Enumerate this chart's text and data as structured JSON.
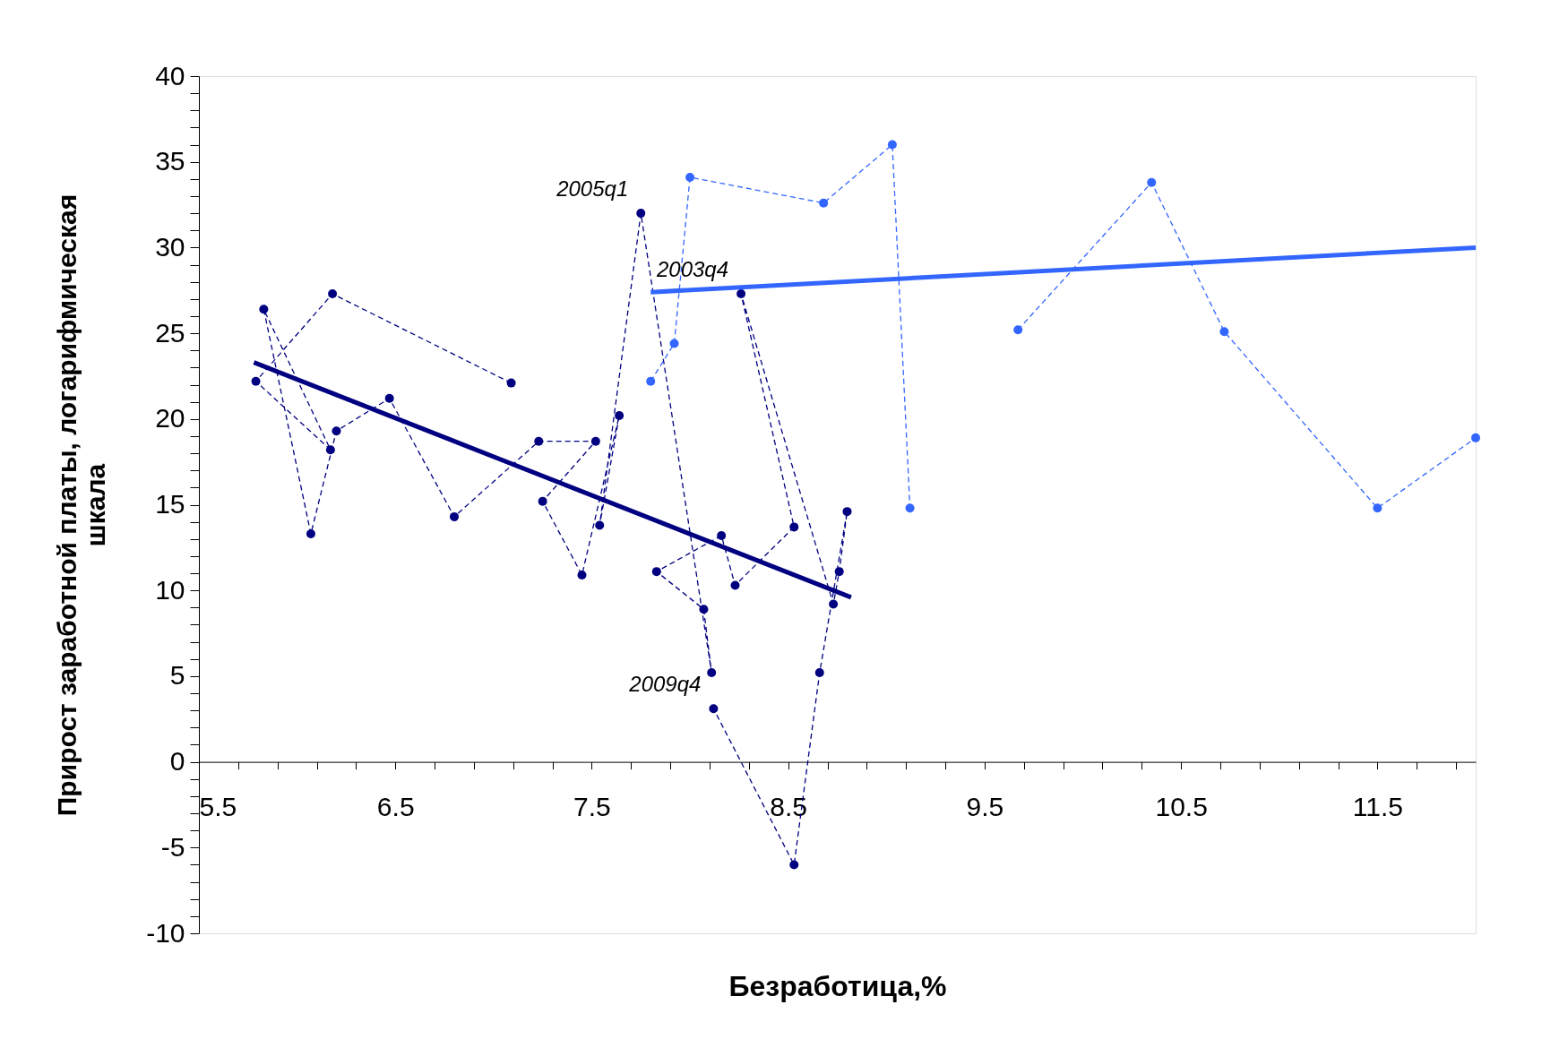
{
  "chart_data": {
    "type": "line",
    "xlabel": "Безработица,%",
    "ylabel": "Прирост заработной платы, логарифмическая\nшкала",
    "xlim": [
      5.5,
      12
    ],
    "ylim": [
      -10,
      40
    ],
    "xticks": [
      5.5,
      {
        "value": 5.7,
        "label": null
      },
      {
        "value": 5.9,
        "label": null
      },
      {
        "value": 6.1,
        "label": null
      },
      {
        "value": 6.3,
        "label": null
      },
      6.5,
      {
        "value": 6.7,
        "label": null
      },
      {
        "value": 6.9,
        "label": null
      },
      {
        "value": 7.1,
        "label": null
      },
      {
        "value": 7.3,
        "label": null
      },
      7.5,
      {
        "value": 7.7,
        "label": null
      },
      {
        "value": 7.9,
        "label": null
      },
      {
        "value": 8.1,
        "label": null
      },
      {
        "value": 8.3,
        "label": null
      },
      8.5,
      {
        "value": 8.7,
        "label": null
      },
      {
        "value": 8.9,
        "label": null
      },
      {
        "value": 9.1,
        "label": null
      },
      {
        "value": 9.3,
        "label": null
      },
      9.5,
      {
        "value": 9.7,
        "label": null
      },
      {
        "value": 9.9,
        "label": null
      },
      {
        "value": 10.1,
        "label": null
      },
      {
        "value": 10.3,
        "label": null
      },
      10.5,
      {
        "value": 10.7,
        "label": null
      },
      {
        "value": 10.9,
        "label": null
      },
      {
        "value": 11.1,
        "label": null
      },
      {
        "value": 11.3,
        "label": null
      },
      11.5,
      {
        "value": 11.7,
        "label": null
      },
      {
        "value": 11.9,
        "label": null
      }
    ],
    "yticks": [
      -10,
      {
        "value": -9,
        "label": null
      },
      {
        "value": -8,
        "label": null
      },
      {
        "value": -7,
        "label": null
      },
      {
        "value": -6,
        "label": null
      },
      -5,
      {
        "value": -4,
        "label": null
      },
      {
        "value": -3,
        "label": null
      },
      {
        "value": -2,
        "label": null
      },
      {
        "value": -1,
        "label": null
      },
      0,
      {
        "value": 1,
        "label": null
      },
      {
        "value": 2,
        "label": null
      },
      {
        "value": 3,
        "label": null
      },
      {
        "value": 4,
        "label": null
      },
      5,
      {
        "value": 6,
        "label": null
      },
      {
        "value": 7,
        "label": null
      },
      {
        "value": 8,
        "label": null
      },
      {
        "value": 9,
        "label": null
      },
      10,
      {
        "value": 11,
        "label": null
      },
      {
        "value": 12,
        "label": null
      },
      {
        "value": 13,
        "label": null
      },
      {
        "value": 14,
        "label": null
      },
      15,
      {
        "value": 16,
        "label": null
      },
      {
        "value": 17,
        "label": null
      },
      {
        "value": 18,
        "label": null
      },
      {
        "value": 19,
        "label": null
      },
      20,
      {
        "value": 21,
        "label": null
      },
      {
        "value": 22,
        "label": null
      },
      {
        "value": 23,
        "label": null
      },
      {
        "value": 24,
        "label": null
      },
      25,
      {
        "value": 26,
        "label": null
      },
      {
        "value": 27,
        "label": null
      },
      {
        "value": 28,
        "label": null
      },
      {
        "value": 29,
        "label": null
      },
      30,
      {
        "value": 31,
        "label": null
      },
      {
        "value": 32,
        "label": null
      },
      {
        "value": 33,
        "label": null
      },
      {
        "value": 34,
        "label": null
      },
      35,
      {
        "value": 36,
        "label": null
      },
      {
        "value": 37,
        "label": null
      },
      {
        "value": 38,
        "label": null
      },
      {
        "value": 39,
        "label": null
      },
      40
    ],
    "grid": false,
    "series": [
      {
        "type": "line",
        "color": "#000080",
        "marker": "circle",
        "line_style": "dashed",
        "x": [
          7.09,
          6.18,
          5.79,
          6.17,
          5.83,
          6.07,
          6.2,
          6.47,
          6.8,
          7.23,
          7.52,
          7.25,
          7.45,
          7.64,
          7.54,
          7.75,
          8.11,
          8.07,
          7.83,
          8.16,
          8.23,
          8.53,
          8.26,
          8.73,
          8.76,
          8.8,
          8.66,
          8.53,
          8.12
        ],
        "values": [
          22.1,
          27.3,
          22.2,
          18.2,
          26.4,
          13.3,
          19.3,
          21.2,
          14.3,
          18.7,
          18.7,
          15.2,
          10.9,
          20.2,
          13.8,
          32.0,
          5.2,
          8.9,
          11.1,
          13.2,
          10.3,
          13.7,
          27.3,
          9.2,
          11.1,
          14.6,
          5.2,
          -6.0,
          3.1
        ]
      },
      {
        "type": "line",
        "color": "#3366ff",
        "marker": "circle",
        "line_style": "dashed",
        "x": [
          7.8,
          7.92,
          8.0,
          8.68,
          9.03,
          9.12,
          9.4,
          9.67,
          10.35,
          10.72,
          11.5,
          12.0
        ],
        "values": [
          22.2,
          24.4,
          34.1,
          32.6,
          36.0,
          14.8,
          null,
          25.2,
          33.8,
          25.1,
          14.8,
          18.9
        ]
      },
      {
        "type": "line",
        "color": "#000080",
        "marker": "none",
        "line_style": "solid",
        "x": [
          5.78,
          8.82
        ],
        "values": [
          23.3,
          9.6
        ]
      },
      {
        "type": "line",
        "color": "#3366ff",
        "marker": "none",
        "line_style": "solid",
        "x": [
          7.8,
          12.0
        ],
        "values": [
          27.4,
          30.0
        ]
      }
    ],
    "annotations": [
      {
        "text": "2005q1",
        "x": 7.75,
        "y": 32.0
      },
      {
        "text": "2003q4",
        "x": 8.26,
        "y": 27.3
      },
      {
        "text": "2009q4",
        "x": 8.12,
        "y": 3.1
      }
    ]
  }
}
